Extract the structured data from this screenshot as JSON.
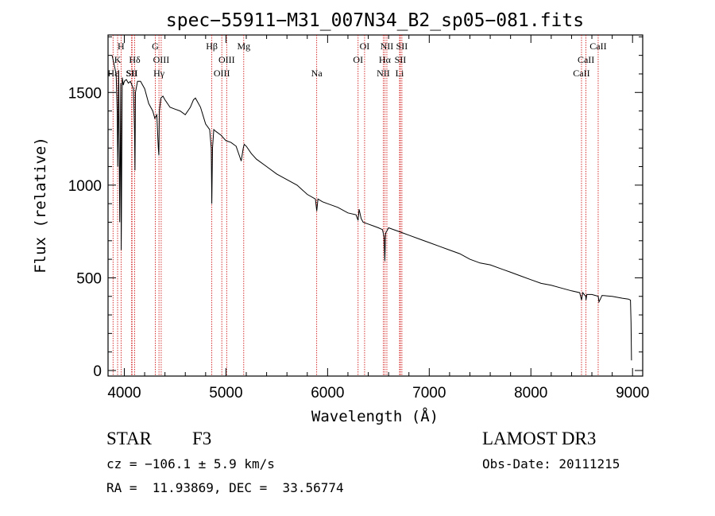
{
  "chart_data": {
    "type": "line",
    "title": "spec−55911−M31_007N34_B2_sp05−081.fits",
    "xlabel": "Wavelength (Å)",
    "ylabel": "Flux (relative)",
    "xlim": [
      3840,
      9100
    ],
    "ylim": [
      -30,
      1810
    ],
    "xticks": [
      4000,
      5000,
      6000,
      7000,
      8000,
      9000
    ],
    "yticks": [
      0,
      500,
      1000,
      1500
    ],
    "grid": false,
    "line_color": "#000000",
    "marker_color": "#cc0000",
    "series": [
      {
        "name": "flux",
        "x": [
          3880,
          3900,
          3920,
          3930,
          3935,
          3945,
          3955,
          3965,
          3970,
          3980,
          3990,
          4000,
          4020,
          4040,
          4060,
          4090,
          4100,
          4105,
          4110,
          4130,
          4160,
          4200,
          4240,
          4280,
          4300,
          4320,
          4335,
          4340,
          4345,
          4360,
          4380,
          4400,
          4450,
          4500,
          4550,
          4600,
          4650,
          4680,
          4700,
          4750,
          4800,
          4840,
          4855,
          4861,
          4868,
          4880,
          4900,
          4950,
          5000,
          5050,
          5100,
          5150,
          5170,
          5180,
          5200,
          5250,
          5300,
          5400,
          5500,
          5600,
          5700,
          5800,
          5880,
          5893,
          5905,
          5950,
          6000,
          6100,
          6200,
          6280,
          6300,
          6310,
          6330,
          6350,
          6400,
          6450,
          6500,
          6540,
          6555,
          6563,
          6570,
          6600,
          6700,
          6800,
          6900,
          7000,
          7100,
          7200,
          7300,
          7400,
          7500,
          7600,
          7700,
          7800,
          7900,
          8000,
          8100,
          8200,
          8300,
          8400,
          8480,
          8498,
          8510,
          8540,
          8542,
          8550,
          8600,
          8662,
          8670,
          8700,
          8800,
          8900,
          8960,
          8980,
          8985,
          8990
        ],
        "y": [
          1700,
          1650,
          1600,
          1400,
          1100,
          1620,
          800,
          1550,
          650,
          1580,
          1540,
          1560,
          1570,
          1550,
          1560,
          1520,
          1300,
          1080,
          1500,
          1560,
          1560,
          1520,
          1440,
          1400,
          1360,
          1380,
          1200,
          1160,
          1400,
          1470,
          1480,
          1460,
          1420,
          1410,
          1400,
          1380,
          1420,
          1460,
          1470,
          1420,
          1330,
          1300,
          1200,
          900,
          1200,
          1300,
          1290,
          1270,
          1240,
          1230,
          1210,
          1130,
          1200,
          1220,
          1210,
          1170,
          1140,
          1100,
          1060,
          1030,
          1000,
          950,
          925,
          860,
          925,
          910,
          900,
          880,
          850,
          840,
          810,
          870,
          820,
          800,
          790,
          780,
          770,
          760,
          720,
          590,
          740,
          770,
          750,
          730,
          710,
          690,
          670,
          650,
          630,
          600,
          580,
          570,
          550,
          530,
          510,
          490,
          470,
          460,
          445,
          430,
          420,
          380,
          420,
          400,
          380,
          410,
          410,
          400,
          370,
          405,
          400,
          390,
          385,
          380,
          260,
          55
        ]
      }
    ],
    "lines": [
      {
        "name": "Hε",
        "wave": 3889,
        "row": 3
      },
      {
        "name": "K",
        "wave": 3934,
        "row": 2
      },
      {
        "name": "H",
        "wave": 3968,
        "row": 1
      },
      {
        "name": "Hδ",
        "wave": 4102,
        "row": 2
      },
      {
        "name": "SII",
        "wave": 4072,
        "row": 3
      },
      {
        "name": "SII",
        "wave": 4076,
        "row": 3
      },
      {
        "name": "G",
        "wave": 4305,
        "row": 1
      },
      {
        "name": "Hγ",
        "wave": 4341,
        "row": 3
      },
      {
        "name": "OIII",
        "wave": 4363,
        "row": 2
      },
      {
        "name": "Hβ",
        "wave": 4861,
        "row": 1
      },
      {
        "name": "OIII",
        "wave": 4959,
        "row": 3
      },
      {
        "name": "OIII",
        "wave": 5007,
        "row": 2
      },
      {
        "name": "Mg",
        "wave": 5175,
        "row": 1
      },
      {
        "name": "Na",
        "wave": 5893,
        "row": 3
      },
      {
        "name": "OI",
        "wave": 6300,
        "row": 2
      },
      {
        "name": "OI",
        "wave": 6364,
        "row": 1
      },
      {
        "name": "NII",
        "wave": 6548,
        "row": 3
      },
      {
        "name": "NII",
        "wave": 6583,
        "row": 1
      },
      {
        "name": "Hα",
        "wave": 6563,
        "row": 2
      },
      {
        "name": "SII",
        "wave": 6716,
        "row": 2
      },
      {
        "name": "SII",
        "wave": 6731,
        "row": 1
      },
      {
        "name": "Li",
        "wave": 6708,
        "row": 3
      },
      {
        "name": "CaII",
        "wave": 8498,
        "row": 3
      },
      {
        "name": "CaII",
        "wave": 8542,
        "row": 2
      },
      {
        "name": "CaII",
        "wave": 8662,
        "row": 1
      }
    ]
  },
  "footer": {
    "object_class": "STAR",
    "subclass": "F3",
    "survey": "LAMOST DR3",
    "redshift": "cz = −106.1 ± 5.9 km/s",
    "obs_date": "Obs-Date: 20111215",
    "coords": "RA =  11.93869, DEC =  33.56774"
  }
}
